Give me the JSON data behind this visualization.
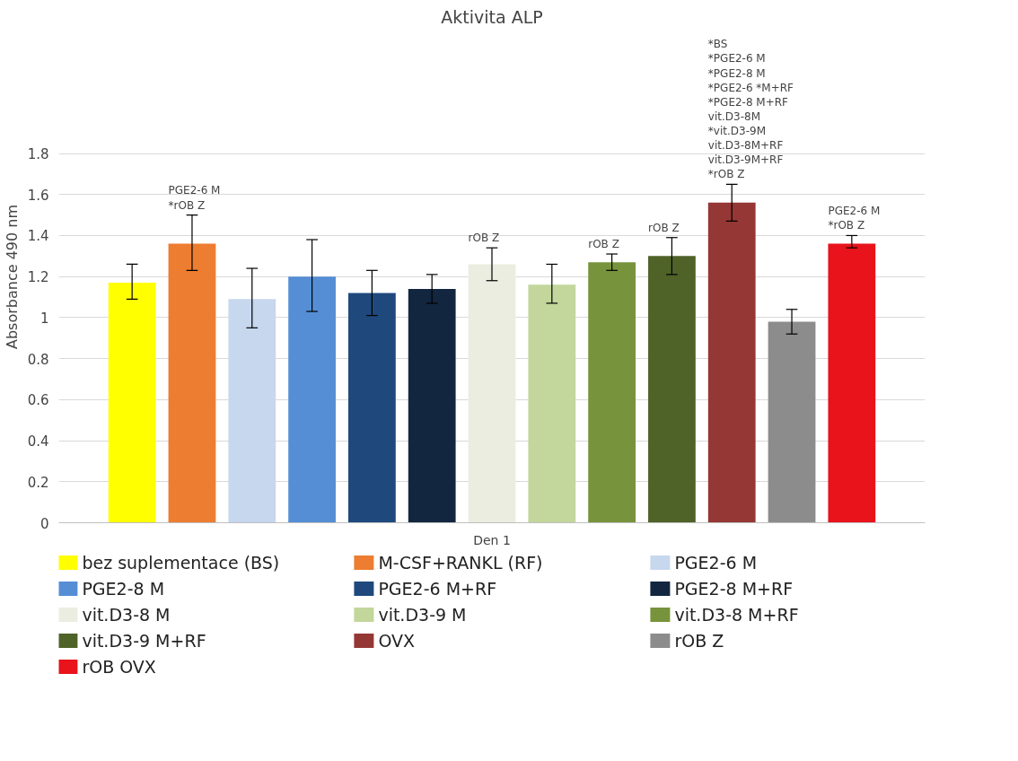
{
  "chart_data": {
    "type": "bar",
    "title": "Aktivita ALP",
    "ylabel": "Absorbance 490 nm",
    "categories": [
      "Den 1"
    ],
    "ylim": [
      0,
      1.8
    ],
    "yticks": [
      0,
      0.2,
      0.4,
      0.6,
      0.8,
      1,
      1.2,
      1.4,
      1.6,
      1.8
    ],
    "grid": "y",
    "legend": "bottom",
    "series": [
      {
        "name": "bez suplementace (BS)",
        "color": "#ffff00",
        "values": [
          1.17
        ],
        "errors": [
          [
            1.09,
            1.26
          ]
        ]
      },
      {
        "name": "M-CSF+RANKL (RF)",
        "color": "#ed7d31",
        "values": [
          1.36
        ],
        "errors": [
          [
            1.23,
            1.5
          ]
        ],
        "value_labels": [
          "PGE2-6 M\n*rOB Z"
        ]
      },
      {
        "name": "PGE2-6 M",
        "color": "#c6d7ee",
        "values": [
          1.09
        ],
        "errors": [
          [
            0.95,
            1.24
          ]
        ]
      },
      {
        "name": "PGE2-8 M",
        "color": "#558ed5",
        "values": [
          1.2
        ],
        "errors": [
          [
            1.03,
            1.38
          ]
        ]
      },
      {
        "name": "PGE2-6 M+RF",
        "color": "#1f497d",
        "values": [
          1.12
        ],
        "errors": [
          [
            1.01,
            1.23
          ]
        ]
      },
      {
        "name": "PGE2-8 M+RF",
        "color": "#12263f",
        "values": [
          1.14
        ],
        "errors": [
          [
            1.07,
            1.21
          ]
        ]
      },
      {
        "name": "vit.D3-8 M",
        "color": "#ebede0",
        "values": [
          1.26
        ],
        "errors": [
          [
            1.18,
            1.34
          ]
        ],
        "value_labels": [
          "rOB Z"
        ]
      },
      {
        "name": "vit.D3-9 M",
        "color": "#c3d69b",
        "values": [
          1.16
        ],
        "errors": [
          [
            1.07,
            1.26
          ]
        ]
      },
      {
        "name": "vit.D3-8 M+RF",
        "color": "#77933c",
        "values": [
          1.27
        ],
        "errors": [
          [
            1.23,
            1.31
          ]
        ],
        "value_labels": [
          "rOB Z"
        ]
      },
      {
        "name": "vit.D3-9 M+RF",
        "color": "#4f6228",
        "values": [
          1.3
        ],
        "errors": [
          [
            1.21,
            1.39
          ]
        ],
        "value_labels": [
          "rOB Z"
        ]
      },
      {
        "name": "OVX",
        "color": "#953735",
        "values": [
          1.56
        ],
        "errors": [
          [
            1.47,
            1.65
          ]
        ],
        "value_labels": [
          "*BS\n*PGE2-6 M\n*PGE2-8 M\n*PGE2-6 *M+RF\n*PGE2-8 M+RF\nvit.D3-8M\n*vit.D3-9M\nvit.D3-8M+RF\nvit.D3-9M+RF\n*rOB Z"
        ]
      },
      {
        "name": "rOB Z",
        "color": "#8c8c8c",
        "values": [
          0.98
        ],
        "errors": [
          [
            0.92,
            1.04
          ]
        ]
      },
      {
        "name": "rOB OVX",
        "color": "#e8131b",
        "values": [
          1.36
        ],
        "errors": [
          [
            1.34,
            1.4
          ]
        ],
        "value_labels": [
          "PGE2-6 M\n*rOB Z"
        ]
      }
    ]
  }
}
